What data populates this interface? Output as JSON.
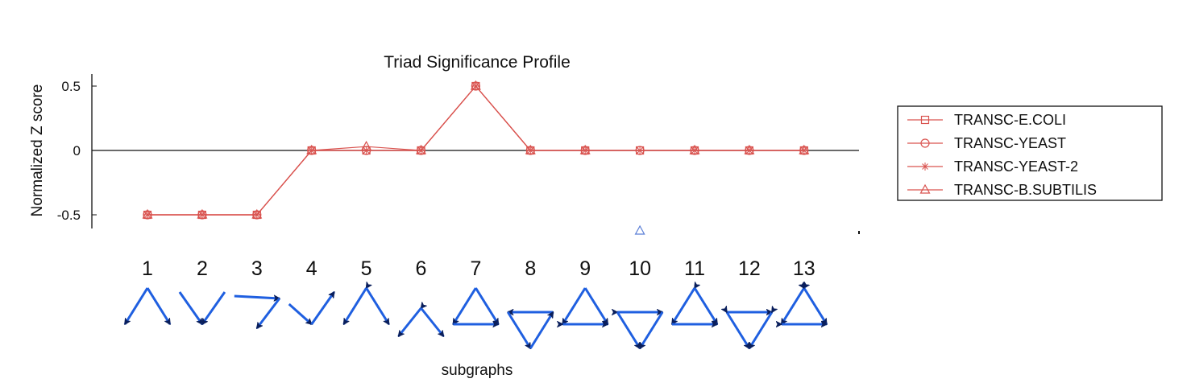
{
  "chart_data": {
    "type": "line",
    "title": "Triad Significance Profile",
    "xlabel": "subgraphs",
    "ylabel": "Normalized Z score",
    "categories": [
      "1",
      "2",
      "3",
      "4",
      "5",
      "6",
      "7",
      "8",
      "9",
      "10",
      "11",
      "12",
      "13"
    ],
    "yticks": [
      "0.5",
      "0",
      "-0.5"
    ],
    "ylim": [
      -0.6,
      0.6
    ],
    "grid": false,
    "legend_position": "right",
    "series": [
      {
        "name": "TRANSC-E.COLI",
        "marker": "square",
        "values": [
          -0.5,
          -0.5,
          -0.5,
          0,
          0,
          0,
          0.5,
          0,
          0,
          0,
          0,
          0,
          0
        ]
      },
      {
        "name": "TRANSC-YEAST",
        "marker": "circle",
        "values": [
          -0.5,
          -0.5,
          -0.5,
          0,
          0,
          0,
          0.5,
          0,
          0,
          0,
          0,
          0,
          0
        ]
      },
      {
        "name": "TRANSC-YEAST-2",
        "marker": "star",
        "values": [
          -0.5,
          -0.5,
          -0.5,
          0,
          0,
          0,
          0.5,
          0,
          0,
          0,
          0,
          0,
          0
        ]
      },
      {
        "name": "TRANSC-B.SUBTILIS",
        "marker": "triangle",
        "values": [
          -0.5,
          -0.5,
          -0.5,
          0,
          0.03,
          0,
          0.5,
          0,
          0,
          -0.63,
          0,
          0,
          0
        ]
      }
    ],
    "series_color": "#d9534f",
    "outlier_marker_color": "#5b7fd6"
  },
  "subgraph_color": "#1f5fe0"
}
